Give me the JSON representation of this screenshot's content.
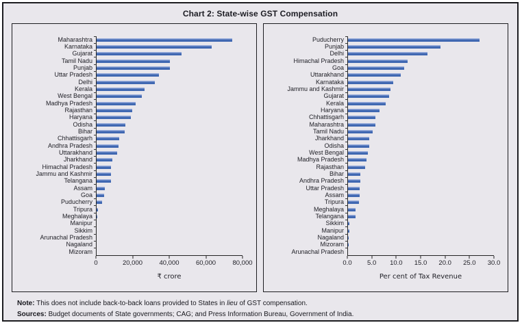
{
  "title": "Chart 2: State-wise GST Compensation",
  "note": {
    "label": "Note:",
    "pre": " This does not include back-to-back loans provided to States in ",
    "italic": "lieu",
    "post": " of GST compensation."
  },
  "sources": {
    "label": "Sources:",
    "text": " Budget documents of State governments; CAG; and Press Information Bureau, Government of India."
  },
  "colors": {
    "bar": "#4068b2",
    "bar_highlight": "#97abdb",
    "background": "#e9e7ec",
    "border": "#1b1b1f"
  },
  "chart_data": [
    {
      "type": "bar",
      "orientation": "horizontal",
      "title": "",
      "xlabel": "₹ crore",
      "xlim": [
        0,
        80000
      ],
      "xticks": [
        "0",
        "20,000",
        "40,000",
        "60,000",
        "80,000"
      ],
      "grid": false,
      "legend": false,
      "categories": [
        "Maharashtra",
        "Karnataka",
        "Gujarat",
        "Tamil Nadu",
        "Punjab",
        "Uttar Pradesh",
        "Delhi",
        "Kerala",
        "West Bengal",
        "Madhya Pradesh",
        "Rajasthan",
        "Haryana",
        "Odisha",
        "Bihar",
        "Chhattisgarh",
        "Andhra Pradesh",
        "Uttarakhand",
        "Jharkhand",
        "Himachal Pradesh",
        "Jammu and Kashmir",
        "Telangana",
        "Assam",
        "Goa",
        "Puducherry",
        "Tripura",
        "Meghalaya",
        "Manipur",
        "Sikkim",
        "Arunachal Pradesh",
        "Nagaland",
        "Mizoram"
      ],
      "values": [
        74500,
        63000,
        46400,
        40200,
        40000,
        34100,
        31800,
        26200,
        24700,
        21400,
        19400,
        18700,
        15800,
        15300,
        12400,
        11900,
        11100,
        8500,
        7900,
        7700,
        7700,
        4500,
        4200,
        3000,
        600,
        300,
        100,
        100,
        0,
        0,
        0
      ]
    },
    {
      "type": "bar",
      "orientation": "horizontal",
      "title": "",
      "xlabel": "Per cent of Tax Revenue",
      "xlim": [
        0,
        30
      ],
      "xticks": [
        "0.0",
        "5.0",
        "10.0",
        "15.0",
        "20.0",
        "25.0",
        "30.0"
      ],
      "grid": false,
      "legend": false,
      "categories": [
        "Puducherry",
        "Punjab",
        "Delhi",
        "Himachal Pradesh",
        "Goa",
        "Uttarakhand",
        "Karnataka",
        "Jammu and Kashmir",
        "Gujarat",
        "Kerala",
        "Haryana",
        "Chhattisgarh",
        "Maharashtra",
        "Tamil Nadu",
        "Jharkhand",
        "Odisha",
        "West Bengal",
        "Madhya Pradesh",
        "Rajasthan",
        "Bihar",
        "Andhra Pradesh",
        "Uttar Pradesh",
        "Assam",
        "Tripura",
        "Meghalaya",
        "Telangana",
        "Sikkim",
        "Manipur",
        "Nagaland",
        "Mizoram",
        "Arunachal Pradesh"
      ],
      "values": [
        27.0,
        19.0,
        16.3,
        12.3,
        11.6,
        10.9,
        9.3,
        8.8,
        8.5,
        7.7,
        6.5,
        5.7,
        5.6,
        5.1,
        4.4,
        4.3,
        4.1,
        3.8,
        3.5,
        2.6,
        2.5,
        2.4,
        2.4,
        2.2,
        1.6,
        1.5,
        0.3,
        0.3,
        0.1,
        0.1,
        0.0
      ]
    }
  ]
}
